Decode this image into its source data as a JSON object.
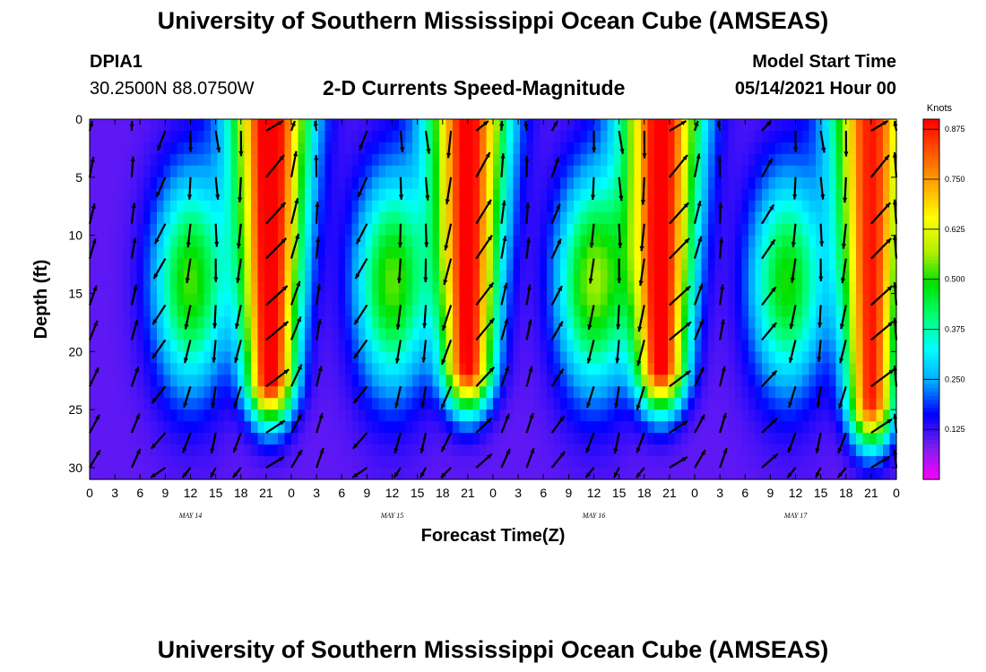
{
  "page": {
    "title_top": "University of Southern Mississippi Ocean Cube (AMSEAS)",
    "title_bottom": "University of Southern Mississippi Ocean Cube (AMSEAS)",
    "station_id": "DPIA1",
    "station_coords": "30.2500N  88.0750W",
    "plot_title": "2-D Currents Speed-Magnitude",
    "model_label": "Model Start Time",
    "model_time": "05/14/2021 Hour 00"
  },
  "colors": {
    "colormap": [
      "#ff00ff",
      "#7a1ff0",
      "#0000ff",
      "#00aaff",
      "#00ffff",
      "#00ff70",
      "#00e000",
      "#b8f000",
      "#ffff00",
      "#ffaa00",
      "#ff5500",
      "#ff0000"
    ],
    "arrow": "#000000",
    "background": "#ffffff"
  },
  "chart_data": {
    "type": "heatmap",
    "title": "2-D Currents Speed-Magnitude",
    "xlabel": "Forecast Time(Z)",
    "ylabel": "Depth (ft)",
    "colorbar_label": "Knots",
    "colorbar_ticks": [
      "0.125",
      "0.250",
      "0.375",
      "0.500",
      "0.625",
      "0.750",
      "0.875"
    ],
    "colorbar_values": [
      0.125,
      0.25,
      0.375,
      0.5,
      0.625,
      0.75,
      0.875
    ],
    "colorbar_range": [
      0,
      0.9
    ],
    "xlim": [
      0,
      96
    ],
    "ylim": [
      31,
      0
    ],
    "x_ticks": [
      0,
      3,
      6,
      9,
      12,
      15,
      18,
      21,
      24,
      27,
      30,
      33,
      36,
      39,
      42,
      45,
      48,
      51,
      54,
      57,
      60,
      63,
      66,
      69,
      72,
      75,
      78,
      81,
      84,
      87,
      90,
      93,
      96
    ],
    "x_tick_labels": [
      "0",
      "3",
      "6",
      "9",
      "12",
      "15",
      "18",
      "21",
      "0",
      "3",
      "6",
      "9",
      "12",
      "15",
      "18",
      "21",
      "0",
      "3",
      "6",
      "9",
      "12",
      "15",
      "18",
      "21",
      "0",
      "3",
      "6",
      "9",
      "12",
      "15",
      "18",
      "21",
      "0"
    ],
    "y_ticks": [
      0,
      5,
      10,
      15,
      20,
      25,
      30
    ],
    "y_tick_labels": [
      "0",
      "5",
      "10",
      "15",
      "20",
      "25",
      "30"
    ],
    "date_labels": [
      {
        "hour": 12,
        "text": "MAY 14"
      },
      {
        "hour": 36,
        "text": "MAY 15"
      },
      {
        "hour": 60,
        "text": "MAY 16"
      },
      {
        "hour": 84,
        "text": "MAY 17"
      }
    ],
    "speed_peaks": [
      {
        "hour": 21.5,
        "peak": 0.85,
        "base_depth": 22
      },
      {
        "hour": 45,
        "peak": 0.82,
        "base_depth": 21
      },
      {
        "hour": 68,
        "peak": 0.83,
        "base_depth": 21
      },
      {
        "hour": 93,
        "peak": 0.78,
        "base_depth": 24
      }
    ],
    "secondary_peaks": [
      {
        "hour": 12,
        "peak": 0.42
      },
      {
        "hour": 36,
        "peak": 0.43
      },
      {
        "hour": 60,
        "peak": 0.46
      },
      {
        "hour": 83,
        "peak": 0.4
      }
    ],
    "vector_times": [
      0,
      5,
      9,
      12,
      15,
      18,
      21,
      24,
      27,
      33,
      37,
      40,
      43,
      46,
      49,
      52,
      55,
      60,
      63,
      66,
      69,
      72,
      75,
      80,
      84,
      87,
      90,
      93,
      96
    ],
    "vector_depths": [
      1,
      5,
      9,
      12,
      16,
      19,
      23,
      27,
      30
    ]
  }
}
